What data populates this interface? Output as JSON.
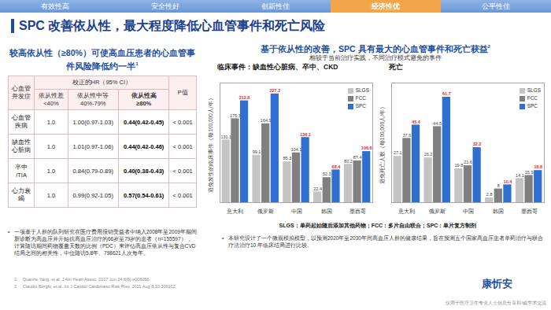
{
  "nav": [
    {
      "label": "有效性高",
      "active": false
    },
    {
      "label": "安全性好",
      "active": false
    },
    {
      "label": "创新性佳",
      "active": false
    },
    {
      "label": "经济性优",
      "active": true
    },
    {
      "label": "公平性佳",
      "active": false
    }
  ],
  "title": "SPC 改善依从性，最大程度降低心血管事件和死亡风险",
  "left": {
    "heading": "较高依从性（≥80%）可使高血压患者的心血管事件风险降低约一半",
    "heading_ref": "1",
    "table": {
      "header_group": "校正的HR（95% CI）",
      "columns": [
        "心血管\n并发症",
        "依从性差\n<40%",
        "依从性中等\n40%-79%",
        "依从性高\n≥80%",
        "P值"
      ],
      "rows": [
        [
          "心血管\n疾病",
          "1.0",
          "1.00(0.97-1.03)",
          "0.44(0.42-0.45)",
          "< 0.001"
        ],
        [
          "缺血性\n心脏病",
          "1.0",
          "1.01(0.97-1.06)",
          "0.44(0.42-0.46)",
          "< 0.001"
        ],
        [
          "卒中\n/TIA",
          "1.0",
          "0.84(0.79-0.89)",
          "0.40(0.38-0.43)",
          "< 0.001"
        ],
        [
          "心力衰\n竭",
          "1.0",
          "0.99(0.92-1.05)",
          "0.57(0.54-0.61)",
          "< 0.001"
        ]
      ]
    },
    "note": "一项基于人群的队列研究在医疗费用报销受益者中纳入2008年至2009年期间新诊断为高血压并开始抗高血压治疗的66岁至79岁的患者（n=155597），计算随访期间药物覆盖天数的比例（PDC）来评估高血压依从性与复合CVD结局之间的相关性，中位随访5.8年、798621人次每年。",
    "references": [
      "1.    Quanhe Yang, et al. J Am Heart Assoc. 2017 Jun 24;6(6):e006056.",
      "2.    Claudio Borghi, et al. Int J Cardiol Cardiovasc Risk Prev. 2021 Aug 8;10:200102."
    ]
  },
  "right": {
    "heading": "基于依从性的改善，SPC 具有最大的心血管事件和死亡获益",
    "heading_ref": "2",
    "subheading": "相较于当前治疗实践，不同治疗模式避免的事件",
    "footnotes": [
      "SLGS：单药起始随后添加其他药物；FCC：多片自由联合；SPC：单片复方制剂",
      "本研究设计了一个微观模拟模型，以预测2020年至2030年间高血压人群的健康结果，旨在预测五个国家高血压患者单药治疗与联合疗法治疗10 年临床结局进行比较。"
    ]
  },
  "chart_data": [
    {
      "type": "bar",
      "title": "临床事件：缺血性心脏病、卒中、CKD",
      "y_label": "避免发生的临床事件（每100,000人/年）",
      "categories": [
        "意大利",
        "俄罗斯",
        "中国",
        "韩国",
        "墨西哥"
      ],
      "series": [
        {
          "name": "SLGS",
          "color": "#c4c4c4",
          "values": [
            131.1,
            99.1,
            85.3,
            22.4,
            80.2
          ]
        },
        {
          "name": "FCC",
          "color": "#808080",
          "values": [
            175.3,
            164.9,
            104.1,
            52.3,
            87.4
          ]
        },
        {
          "name": "SPC",
          "color": "#2f6fd1",
          "values": [
            212.8,
            227.2,
            136.1,
            68.4,
            106.8
          ]
        }
      ],
      "ylim": [
        0,
        250
      ],
      "data_labels": true,
      "tick_labels": "x",
      "legend": "right"
    },
    {
      "type": "bar",
      "title": "死亡",
      "y_label": "避免死亡人数（每100,000人/年）",
      "categories": [
        "意大利",
        "俄罗斯",
        "中国",
        "韩国",
        "墨西哥"
      ],
      "series": [
        {
          "name": "SLGS",
          "color": "#c4c4c4",
          "values": [
            27.1,
            26.2,
            19.8,
            2.8,
            14.1
          ]
        },
        {
          "name": "FCC",
          "color": "#808080",
          "values": [
            37.6,
            44.5,
            21.6,
            8,
            15.9
          ]
        },
        {
          "name": "SPC",
          "color": "#2f6fd1",
          "values": [
            45.4,
            61.7,
            32.2,
            10.4,
            18.8
          ]
        }
      ],
      "ylim": [
        0,
        70
      ],
      "data_labels": true,
      "tick_labels": "x",
      "legend": "right"
    }
  ],
  "logo": "康忻安",
  "footer": "仅用于医疗卫生专业人士信息分享和/或学术交流"
}
